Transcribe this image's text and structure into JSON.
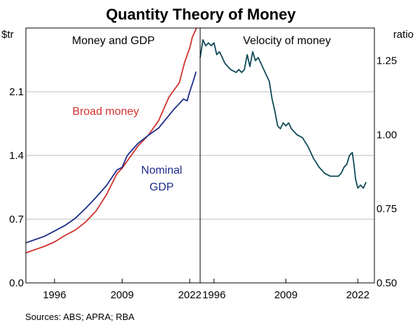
{
  "title": "Quantity Theory of Money",
  "source": "Sources: ABS; APRA; RBA",
  "colors": {
    "broad_money": "#d0312d",
    "nominal_gdp": "#1f2d8a",
    "velocity": "#0e4a57",
    "grid": "#bdbdbd",
    "axis": "#000000"
  },
  "chart_data": [
    {
      "type": "line",
      "panel_title": "Money and GDP",
      "ylabel": "$tr",
      "ylim": [
        0,
        2.8
      ],
      "yticks": [
        "0.0",
        "0.7",
        "1.4",
        "2.1"
      ],
      "yticks_values": [
        0.0,
        0.7,
        1.4,
        2.1
      ],
      "xlim": [
        1990.5,
        2024
      ],
      "xticks": [
        "1996",
        "2009",
        "2022"
      ],
      "xticks_values": [
        1996,
        2009,
        2022
      ],
      "grid": true,
      "series": [
        {
          "name": "Broad money",
          "x": [
            1990.5,
            1992,
            1994,
            1996,
            1998,
            2000,
            2002,
            2004,
            2006,
            2008,
            2009,
            2010,
            2012,
            2014,
            2016,
            2018,
            2019,
            2020,
            2021,
            2022,
            2022.5,
            2023.3
          ],
          "y": [
            0.33,
            0.36,
            0.4,
            0.45,
            0.52,
            0.58,
            0.67,
            0.79,
            0.97,
            1.2,
            1.26,
            1.34,
            1.5,
            1.62,
            1.78,
            2.04,
            2.12,
            2.2,
            2.42,
            2.58,
            2.7,
            2.8
          ]
        },
        {
          "name": "Nominal GDP",
          "x": [
            1990.5,
            1992,
            1994,
            1996,
            1998,
            2000,
            2002,
            2004,
            2006,
            2008,
            2009,
            2010,
            2012,
            2014,
            2016,
            2018,
            2019,
            2020,
            2020.8,
            2021.5,
            2022,
            2022.7,
            2023.2
          ],
          "y": [
            0.44,
            0.47,
            0.51,
            0.57,
            0.63,
            0.71,
            0.82,
            0.94,
            1.07,
            1.24,
            1.27,
            1.4,
            1.53,
            1.62,
            1.7,
            1.84,
            1.91,
            1.97,
            2.02,
            2.0,
            2.1,
            2.22,
            2.32
          ]
        }
      ],
      "labels": {
        "broad_money": "Broad money",
        "nominal_gdp_line1": "Nominal",
        "nominal_gdp_line2": "GDP"
      }
    },
    {
      "type": "line",
      "panel_title": "Velocity of money",
      "ylabel": "ratio",
      "ylim": [
        0.5,
        1.36
      ],
      "yticks": [
        "0.50",
        "0.75",
        "1.00",
        "1.25"
      ],
      "yticks_values": [
        0.5,
        0.75,
        1.0,
        1.25
      ],
      "xlim": [
        1993.5,
        2025
      ],
      "xticks": [
        "1996",
        "2009",
        "2022"
      ],
      "xticks_values": [
        1996,
        2009,
        2022
      ],
      "grid": true,
      "series": [
        {
          "name": "Velocity of money",
          "x": [
            1993.5,
            1994,
            1994.5,
            1995,
            1995.5,
            1996,
            1996.5,
            1997,
            1997.5,
            1998,
            1999,
            2000,
            2000.5,
            2001,
            2001.5,
            2002,
            2002.5,
            2003,
            2003.5,
            2004,
            2004.5,
            2005,
            2006,
            2006.5,
            2007,
            2007.5,
            2008,
            2008.5,
            2009,
            2009.5,
            2010,
            2011,
            2012,
            2013,
            2014,
            2015,
            2016,
            2017,
            2018,
            2018.5,
            2019,
            2019.5,
            2020,
            2020.5,
            2021,
            2021.3,
            2021.6,
            2022,
            2022.5,
            2023,
            2023.5
          ],
          "y": [
            1.26,
            1.32,
            1.3,
            1.31,
            1.3,
            1.31,
            1.27,
            1.28,
            1.26,
            1.24,
            1.22,
            1.21,
            1.22,
            1.21,
            1.22,
            1.27,
            1.23,
            1.28,
            1.25,
            1.26,
            1.24,
            1.22,
            1.18,
            1.12,
            1.08,
            1.03,
            1.02,
            1.04,
            1.03,
            1.04,
            1.02,
            1.0,
            0.99,
            0.96,
            0.92,
            0.89,
            0.87,
            0.86,
            0.86,
            0.86,
            0.87,
            0.89,
            0.9,
            0.93,
            0.94,
            0.9,
            0.85,
            0.82,
            0.83,
            0.82,
            0.84
          ]
        }
      ]
    }
  ]
}
